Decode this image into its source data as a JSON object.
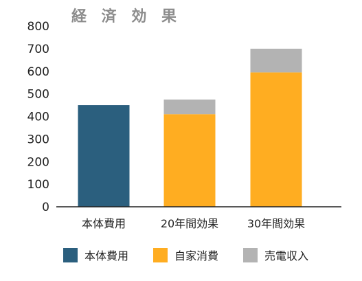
{
  "chart_data": {
    "type": "bar",
    "stacked": true,
    "title": "経 済 効 果",
    "categories": [
      "本体費用",
      "20年間効果",
      "30年間効果"
    ],
    "series": [
      {
        "name": "本体費用",
        "color": "#2b5f7e",
        "values": [
          450,
          0,
          0
        ]
      },
      {
        "name": "自家消費",
        "color": "#ffad21",
        "values": [
          0,
          410,
          595
        ]
      },
      {
        "name": "売電収入",
        "color": "#b3b3b3",
        "values": [
          0,
          65,
          105
        ]
      }
    ],
    "ylim": [
      0,
      800
    ],
    "yticks": [
      0,
      100,
      200,
      300,
      400,
      500,
      600,
      700,
      800
    ],
    "grid": false,
    "legend_position": "bottom"
  }
}
